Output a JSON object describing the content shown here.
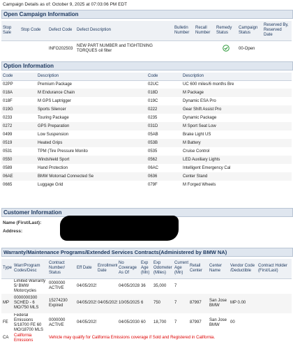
{
  "caption": "Campaign Details as of: October 9, 2025 at 07:03:06 PM EDT",
  "open_campaign": {
    "title": "Open Campaign Information",
    "columns": [
      "Stop Sale",
      "Stop Code",
      "Defect Code",
      "Defect Description",
      "Bulletin Number",
      "Recall Number",
      "Remedy Status",
      "Campaign Status",
      "Reserved By, Reserved Date"
    ],
    "rows": [
      [
        null,
        null,
        "INFO202503",
        "NEW PART NUMBER and TIGHTENING TORQUES oil filter",
        null,
        null,
        null,
        "00-Open",
        null
      ]
    ]
  },
  "options": {
    "title": "Option Information",
    "columns": [
      "Code",
      "Description",
      "Code",
      "Description"
    ],
    "rows": [
      [
        "02PP",
        "Premium Package",
        "02UC",
        "UC 600 miles/6 months Bre"
      ],
      [
        "018A",
        "M Endurance Chain",
        "018D",
        "M Package"
      ],
      [
        "018F",
        "M GPS Laptrigger",
        "019C",
        "Dynamic ESA Pro"
      ],
      [
        "019G",
        "Sports Silencer",
        "0222",
        "Gear Shift Assist Pro"
      ],
      [
        "0233",
        "Touring Package",
        "0235",
        "Dynamic Package"
      ],
      [
        "0272",
        "GPS Preparation",
        "031D",
        "M Sport Seat Low"
      ],
      [
        "0499",
        "Low Suspension",
        "05AB",
        "Brake Light US"
      ],
      [
        "0519",
        "Heated Grips",
        "053B",
        "M Battery"
      ],
      [
        "0531",
        "TPM (Tire Pressure Monito",
        "0535",
        "Cruise Control"
      ],
      [
        "0550",
        "Windshield Sport",
        "0562",
        "LED Auxiliary Lights"
      ],
      [
        "0589",
        "Hand Protection",
        "06AC",
        "Intelligent Emergency Cal"
      ],
      [
        "06AE",
        "BMW Motorrad Connected Se",
        "0636",
        "Center Stand"
      ],
      [
        "0665",
        "Luggage Grid",
        "079F",
        "M Forged Wheels"
      ]
    ]
  },
  "customer": {
    "title": "Customer Information",
    "fields": [
      "Name (First/Last):",
      "Address:"
    ]
  },
  "warranty": {
    "title": "Warranty/Maintenance Programs/Extended Services Contracts(Administered by BMW NA)",
    "columns": [
      "Type",
      "Warr/Program Codes/Desc",
      "Contract Number/ Status",
      "Eff Date",
      "Enrollment Date",
      "No Coverage As Of",
      "Exp Age (Mn)",
      "Exp Odometer (Miles)",
      "Current Age (Mn)",
      "Retail Center",
      "Center Name",
      "Vendor Code /Deductible",
      "Contract Holder (First/Last)"
    ],
    "rows": [
      [
        null,
        "Limited Warranty 5/ BMW Motorcycles",
        "0000000 ACTIVE",
        "04/05/2025",
        null,
        "04/05/2028",
        "36",
        "35,000",
        "7",
        null,
        null,
        null,
        null
      ],
      [
        "MP",
        "0000000300 SCHED - 6 MO/750 MLS",
        "15274230 Expired",
        "04/05/2025",
        "04/05/2025",
        "10/05/2025",
        "6",
        "750",
        "7",
        "87997",
        "San Jose BMW",
        "MP 0.00",
        null
      ],
      [
        "FE",
        "Federal Emissions 5/18700 FE 60 MO/18700 MLS",
        "0000000 ACTIVE",
        "04/05/2025",
        null,
        "04/05/2030",
        "60",
        "18,700",
        "7",
        "87997",
        "San Jose BMW",
        "00",
        null
      ]
    ],
    "notice_row": {
      "type": "CA",
      "program": "California Emissions",
      "message": "Vehicle may qualify for California Emissions coverage if Sold and Registered in California."
    }
  }
}
